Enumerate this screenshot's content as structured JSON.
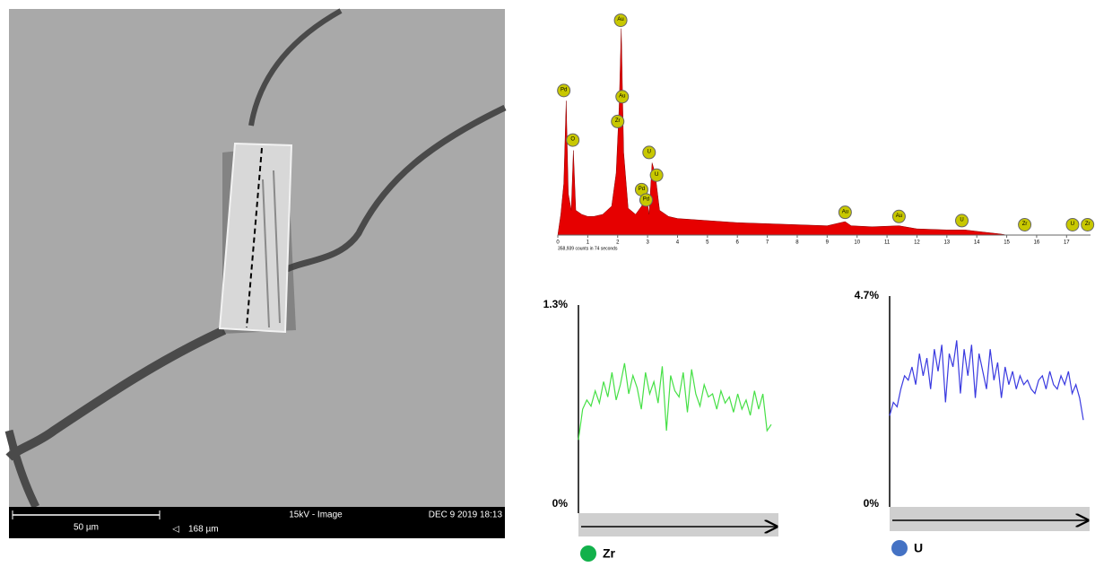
{
  "sem": {
    "scale_bar": "50 µm",
    "field_width": "168 µm",
    "mode": "15kV - Image",
    "date": "DEC 9 2019 18:13"
  },
  "chart_data": [
    {
      "type": "area",
      "color": "#e60000",
      "footer": "358,939 counts in 74 seconds",
      "x": [
        0,
        0.1,
        0.2,
        0.28,
        0.35,
        0.45,
        0.52,
        0.6,
        0.8,
        1.0,
        1.2,
        1.5,
        1.8,
        1.95,
        2.05,
        2.12,
        2.2,
        2.35,
        2.6,
        2.8,
        2.95,
        3.05,
        3.15,
        3.25,
        3.4,
        3.7,
        4,
        5,
        6,
        7,
        8,
        9,
        9.6,
        9.8,
        10.5,
        11.4,
        12,
        13,
        13.6,
        14,
        14.8,
        15
      ],
      "values": [
        0,
        10,
        25,
        65,
        20,
        12,
        41,
        12,
        10,
        9,
        9,
        10,
        14,
        30,
        62,
        100,
        40,
        13,
        10,
        14,
        20,
        10,
        35,
        30,
        12,
        9,
        8,
        7,
        6,
        5.5,
        5,
        4.5,
        6.5,
        4.5,
        4,
        4.5,
        3,
        2.5,
        2.5,
        1.8,
        0.5,
        0
      ],
      "xlim": [
        0,
        17.8
      ],
      "ylim": [
        0,
        106
      ],
      "xticks": [
        0,
        1,
        2,
        3,
        4,
        5,
        6,
        7,
        8,
        9,
        10,
        11,
        12,
        13,
        14,
        15,
        16,
        17
      ],
      "annotations": [
        {
          "label": "Au",
          "x": 2.1,
          "y": 104
        },
        {
          "label": "Pd",
          "x": 0.2,
          "y": 70
        },
        {
          "label": "O",
          "x": 0.5,
          "y": 46
        },
        {
          "label": "Au",
          "x": 2.15,
          "y": 67
        },
        {
          "label": "Zr",
          "x": 2.0,
          "y": 55
        },
        {
          "label": "U",
          "x": 3.05,
          "y": 40
        },
        {
          "label": "U",
          "x": 3.3,
          "y": 29
        },
        {
          "label": "Pd",
          "x": 2.8,
          "y": 22
        },
        {
          "label": "Pd",
          "x": 2.95,
          "y": 17
        },
        {
          "label": "Au",
          "x": 9.6,
          "y": 11
        },
        {
          "label": "Au",
          "x": 11.4,
          "y": 9
        },
        {
          "label": "U",
          "x": 13.5,
          "y": 7
        },
        {
          "label": "Zr",
          "x": 15.6,
          "y": 5
        },
        {
          "label": "U",
          "x": 17.2,
          "y": 5
        },
        {
          "label": "Zr",
          "x": 17.7,
          "y": 5
        }
      ]
    },
    {
      "type": "line",
      "ylim": [
        0,
        1.3
      ],
      "yticks": [
        {
          "value": 1.3,
          "label": "1.3%"
        },
        {
          "value": 0,
          "label": "0%"
        }
      ],
      "series": [
        {
          "name": "Zr",
          "color": "#46e046",
          "marker_color": "#12b14b",
          "values": [
            0.42,
            0.62,
            0.68,
            0.64,
            0.74,
            0.66,
            0.8,
            0.7,
            0.86,
            0.68,
            0.78,
            0.92,
            0.72,
            0.84,
            0.76,
            0.62,
            0.86,
            0.72,
            0.8,
            0.66,
            0.9,
            0.48,
            0.84,
            0.74,
            0.7,
            0.86,
            0.6,
            0.88,
            0.72,
            0.64,
            0.78,
            0.7,
            0.72,
            0.62,
            0.74,
            0.66,
            0.7,
            0.6,
            0.72,
            0.62,
            0.68,
            0.58,
            0.74,
            0.62,
            0.72,
            0.48,
            0.52
          ]
        }
      ]
    },
    {
      "type": "line",
      "ylim": [
        0,
        4.7
      ],
      "yticks": [
        {
          "value": 4.7,
          "label": "4.7%"
        },
        {
          "value": 0,
          "label": "0%"
        }
      ],
      "series": [
        {
          "name": "U",
          "color": "#3a3ae0",
          "marker_color": "#4472c4",
          "values": [
            2.0,
            2.3,
            2.2,
            2.6,
            2.9,
            2.8,
            3.1,
            2.7,
            3.4,
            2.9,
            3.3,
            2.6,
            3.5,
            3.0,
            3.6,
            2.3,
            3.4,
            3.1,
            3.7,
            2.5,
            3.5,
            2.9,
            3.6,
            2.4,
            3.4,
            3.0,
            2.6,
            3.5,
            2.8,
            3.2,
            2.4,
            3.1,
            2.7,
            3.0,
            2.6,
            2.9,
            2.7,
            2.8,
            2.6,
            2.5,
            2.8,
            2.9,
            2.6,
            3.0,
            2.7,
            2.6,
            2.9,
            2.7,
            3.0,
            2.5,
            2.7,
            2.4,
            1.9
          ]
        }
      ]
    }
  ]
}
